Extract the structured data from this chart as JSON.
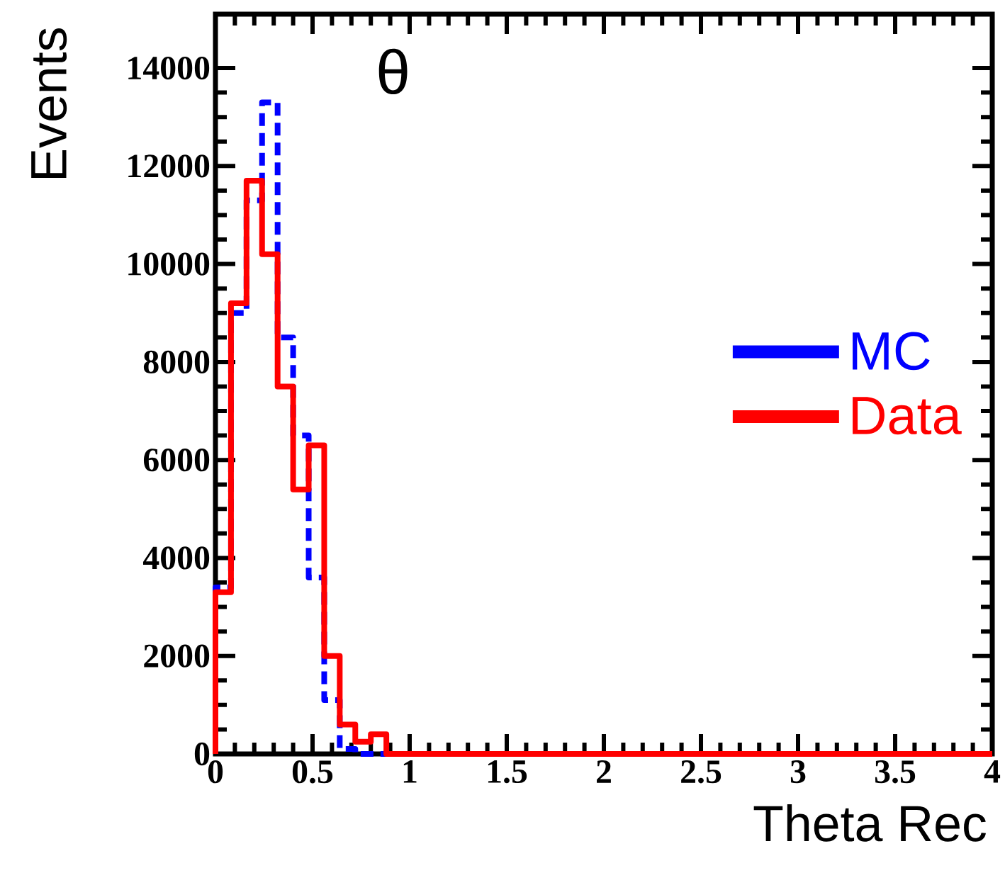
{
  "chart_data": {
    "type": "histogram",
    "title": "θ",
    "xlabel": "Theta Rec",
    "ylabel": "Events",
    "bins": [
      0,
      0.08,
      0.16,
      0.24,
      0.32,
      0.4,
      0.48,
      0.56,
      0.64,
      0.72,
      0.8,
      0.88,
      0.96,
      1.04,
      1.12,
      1.2,
      1.28,
      1.36,
      1.44,
      1.52,
      1.6,
      1.68,
      1.76,
      1.84,
      1.92,
      2,
      2.08,
      2.16,
      2.24,
      2.32,
      2.4,
      2.48,
      2.56,
      2.64,
      2.72,
      2.8,
      2.88,
      2.96,
      3.04,
      3.12,
      3.2,
      3.28,
      3.36,
      3.44,
      3.52,
      3.6,
      3.68,
      3.76,
      3.84,
      3.92,
      4
    ],
    "series": [
      {
        "name": "MC",
        "color": "#0000ff",
        "line_style": "dashed",
        "values": [
          3400,
          9000,
          11300,
          13300,
          8500,
          6500,
          3600,
          1100,
          100,
          0,
          0,
          0,
          0,
          0,
          0,
          0,
          0,
          0,
          0,
          0,
          0,
          0,
          0,
          0,
          0,
          0,
          0,
          0,
          0,
          0,
          0,
          0,
          0,
          0,
          0,
          0,
          0,
          0,
          0,
          0,
          0,
          0,
          0,
          0,
          0,
          0,
          0,
          0,
          0,
          0
        ]
      },
      {
        "name": "Data",
        "color": "#ff0000",
        "line_style": "solid",
        "values": [
          3300,
          9200,
          11700,
          10200,
          7500,
          5400,
          6300,
          2000,
          600,
          250,
          400,
          0,
          0,
          0,
          0,
          0,
          0,
          0,
          0,
          0,
          0,
          0,
          0,
          0,
          0,
          0,
          0,
          0,
          0,
          0,
          0,
          0,
          0,
          0,
          0,
          0,
          0,
          0,
          0,
          0,
          0,
          0,
          0,
          0,
          0,
          0,
          0,
          0,
          0,
          0
        ]
      }
    ],
    "xlim": [
      0,
      4
    ],
    "ylim": [
      0,
      15100
    ],
    "xticks": [
      0,
      0.5,
      1,
      1.5,
      2,
      2.5,
      3,
      3.5,
      4
    ],
    "yticks": [
      0,
      2000,
      4000,
      6000,
      8000,
      10000,
      12000,
      14000
    ],
    "legend": "right",
    "grid": false
  }
}
